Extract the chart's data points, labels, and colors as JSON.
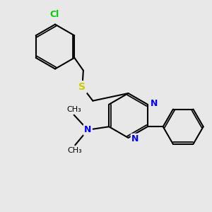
{
  "background_color": "#e8e8e8",
  "bond_color": "#000000",
  "nitrogen_color": "#0000ff",
  "sulfur_color": "#cccc00",
  "chlorine_color": "#00cc00",
  "bond_width": 1.5,
  "font_size": 10,
  "fig_size": [
    3.0,
    3.0
  ],
  "dpi": 100,
  "xlim": [
    0,
    10
  ],
  "ylim": [
    0,
    10
  ]
}
